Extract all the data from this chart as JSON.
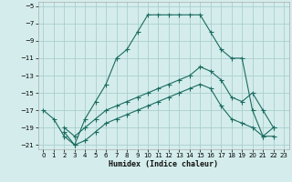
{
  "xlabel": "Humidex (Indice chaleur)",
  "bg_color": "#d4edec",
  "grid_color": "#aacfcc",
  "line_color": "#1a6b60",
  "xlim": [
    -0.5,
    23.5
  ],
  "ylim": [
    -21.5,
    -4.5
  ],
  "yticks": [
    -5,
    -7,
    -9,
    -11,
    -13,
    -15,
    -17,
    -19,
    -21
  ],
  "xticks": [
    0,
    1,
    2,
    3,
    4,
    5,
    6,
    7,
    8,
    9,
    10,
    11,
    12,
    13,
    14,
    15,
    16,
    17,
    18,
    19,
    20,
    21,
    22,
    23
  ],
  "line1_x": [
    0,
    1,
    2,
    3,
    4,
    5,
    6,
    7,
    8,
    9,
    10,
    11,
    12,
    13,
    14,
    15,
    16,
    17,
    18,
    19,
    20,
    21,
    22
  ],
  "line1_y": [
    -17,
    -18,
    -20,
    -21,
    -18,
    -16,
    -14,
    -11,
    -10,
    -8,
    -6,
    -6,
    -6,
    -6,
    -6,
    -6,
    -8,
    -10,
    -11,
    -11,
    -17,
    -20,
    -20
  ],
  "line2_x": [
    2,
    3,
    4,
    5,
    6,
    7,
    8,
    9,
    10,
    11,
    12,
    13,
    14,
    15,
    16,
    17,
    18,
    19,
    20,
    21,
    22
  ],
  "line2_y": [
    -19,
    -20,
    -19,
    -18,
    -17,
    -16.5,
    -16,
    -15.5,
    -15,
    -14.5,
    -14,
    -13.5,
    -13,
    -12,
    -12.5,
    -13.5,
    -15.5,
    -16,
    -15,
    -17,
    -19
  ],
  "line3_x": [
    2,
    3,
    4,
    5,
    6,
    7,
    8,
    9,
    10,
    11,
    12,
    13,
    14,
    15,
    16,
    17,
    18,
    19,
    20,
    21,
    22
  ],
  "line3_y": [
    -19.5,
    -21,
    -20.5,
    -19.5,
    -18.5,
    -18,
    -17.5,
    -17,
    -16.5,
    -16,
    -15.5,
    -15,
    -14.5,
    -14,
    -14.5,
    -16.5,
    -18,
    -18.5,
    -19,
    -20,
    -19
  ]
}
